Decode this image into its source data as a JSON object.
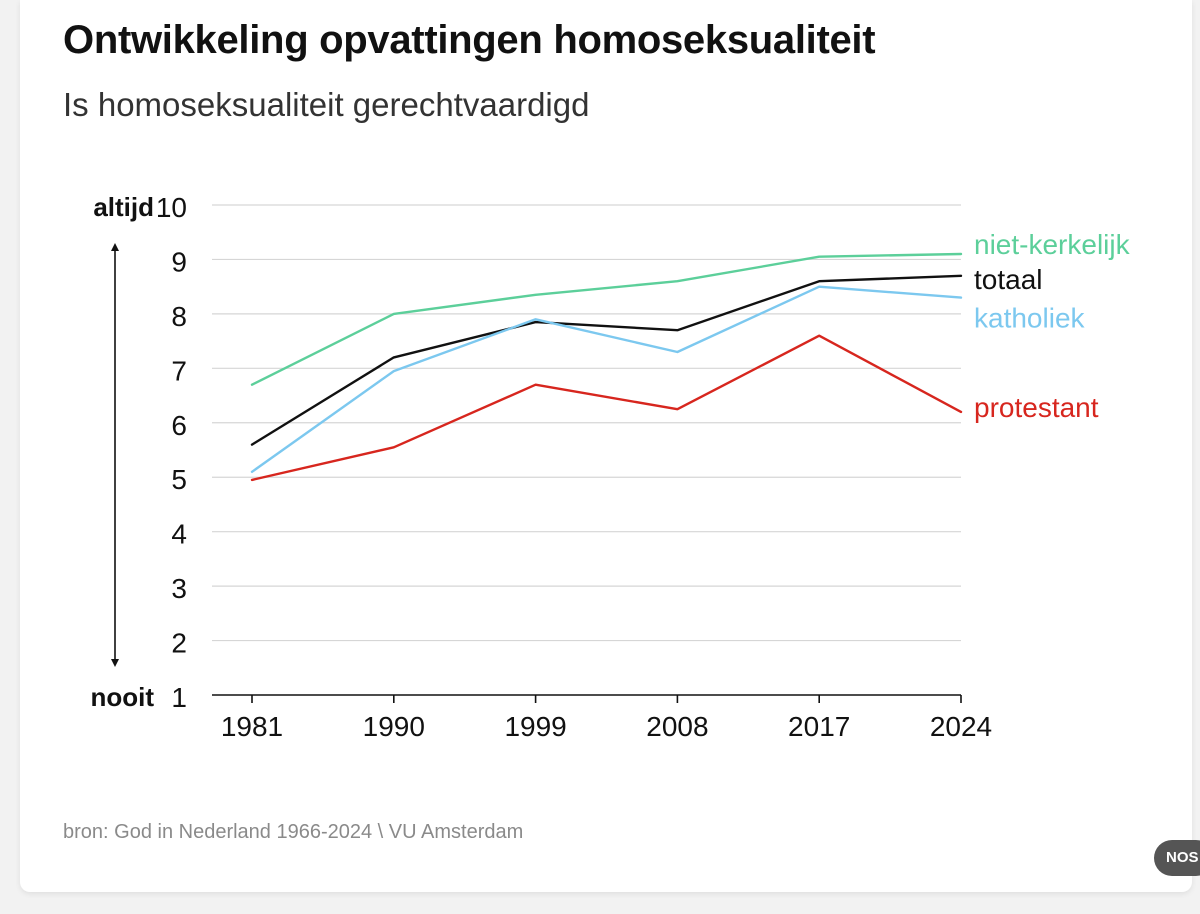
{
  "title": "Ontwikkeling opvattingen homoseksualiteit",
  "subtitle": "Is homoseksualiteit gerechtvaardigd",
  "source": "bron: God in Nederland 1966-2024 \\ VU Amsterdam",
  "badge": "NOS",
  "chart_data": {
    "type": "line",
    "x": [
      "1981",
      "1990",
      "1999",
      "2008",
      "2017",
      "2024"
    ],
    "ylim": [
      1,
      10
    ],
    "yticks": [
      "1",
      "2",
      "3",
      "4",
      "5",
      "6",
      "7",
      "8",
      "9",
      "10"
    ],
    "y_top_label": "altijd",
    "y_bottom_label": "nooit",
    "grid": true,
    "legend": "labels at line ends (right)",
    "series": [
      {
        "name": "niet-kerkelijk",
        "color": "#5ccf9a",
        "values": [
          6.7,
          8.0,
          8.35,
          8.6,
          9.05,
          9.1
        ]
      },
      {
        "name": "totaal",
        "color": "#111111",
        "values": [
          5.6,
          7.2,
          7.85,
          7.7,
          8.6,
          8.7
        ]
      },
      {
        "name": "katholiek",
        "color": "#7cc8ef",
        "values": [
          5.1,
          6.95,
          7.9,
          7.3,
          8.5,
          8.3
        ]
      },
      {
        "name": "protestant",
        "color": "#d7261e",
        "values": [
          4.95,
          5.55,
          6.7,
          6.25,
          7.6,
          6.2
        ]
      }
    ]
  }
}
